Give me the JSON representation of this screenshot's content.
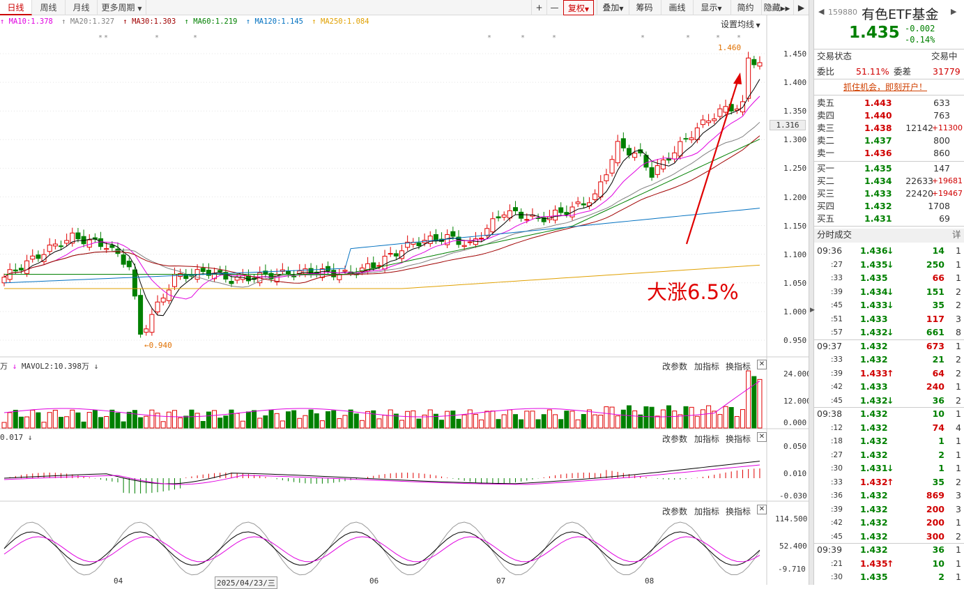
{
  "toolbar": {
    "tabs": [
      "日线",
      "周线",
      "月线",
      "更多周期"
    ],
    "plus": "+",
    "minus": "—",
    "buttons": [
      "复权",
      "叠加",
      "筹码",
      "画线",
      "显示",
      "简约",
      "隐藏"
    ]
  },
  "ma_legend": [
    {
      "label": "MA10:1.378",
      "color": "#e000e0"
    },
    {
      "label": "MA20:1.327",
      "color": "#808080"
    },
    {
      "label": "MA30:1.303",
      "color": "#a00000"
    },
    {
      "label": "MA60:1.219",
      "color": "#008000"
    },
    {
      "label": "MA120:1.145",
      "color": "#0070c0"
    },
    {
      "label": "MA250:1.084",
      "color": "#e0a000"
    }
  ],
  "set_ma_label": "设置均线",
  "price_axis": [
    "1.450",
    "1.400",
    "1.350",
    "1.316",
    "1.300",
    "1.250",
    "1.200",
    "1.150",
    "1.100",
    "1.050",
    "1.000",
    "0.950"
  ],
  "annotations": {
    "high": "1.460",
    "low": "←0.940",
    "callout": "大涨6.5%"
  },
  "vol_panel": {
    "legend": "MAVOL2:10.398万",
    "prefix": "万",
    "buttons": [
      "改参数",
      "加指标",
      "换指标"
    ],
    "axis": [
      "24.000",
      "12.000",
      "0.000"
    ]
  },
  "macd_panel": {
    "legend": "0.017",
    "buttons": [
      "改参数",
      "加指标",
      "换指标"
    ],
    "axis": [
      "0.050",
      "0.010",
      "-0.030"
    ]
  },
  "kdj_panel": {
    "buttons": [
      "改参数",
      "加指标",
      "换指标"
    ],
    "axis": [
      "114.500",
      "52.400",
      "-9.710"
    ]
  },
  "x_axis": [
    "04",
    "2025/04/23/三",
    "06",
    "07",
    "08"
  ],
  "colors": {
    "up": "#e00000",
    "down": "#008000"
  },
  "stock": {
    "code": "159880",
    "name": "有色ETF基金",
    "price": "1.435",
    "change": "-0.002",
    "pct": "-0.14%"
  },
  "status": {
    "label": "交易状态",
    "value": "交易中",
    "wb_label": "委比",
    "wb": "51.11%",
    "wc_label": "委差",
    "wc": "31779"
  },
  "promo": "抓住机会，即刻开户！",
  "asks": [
    {
      "label": "卖五",
      "price": "1.443",
      "vol": "633",
      "chg": ""
    },
    {
      "label": "卖四",
      "price": "1.440",
      "vol": "763",
      "chg": ""
    },
    {
      "label": "卖三",
      "price": "1.438",
      "vol": "12142",
      "chg": "+11300"
    },
    {
      "label": "卖二",
      "price": "1.437",
      "vol": "800",
      "chg": ""
    },
    {
      "label": "卖一",
      "price": "1.436",
      "vol": "860",
      "chg": ""
    }
  ],
  "bids": [
    {
      "label": "买一",
      "price": "1.435",
      "vol": "147",
      "chg": ""
    },
    {
      "label": "买二",
      "price": "1.434",
      "vol": "22633",
      "chg": "+19681"
    },
    {
      "label": "买三",
      "price": "1.433",
      "vol": "22420",
      "chg": "+19467"
    },
    {
      "label": "买四",
      "price": "1.432",
      "vol": "1708",
      "chg": ""
    },
    {
      "label": "买五",
      "price": "1.431",
      "vol": "69",
      "chg": ""
    }
  ],
  "ticks_header": {
    "label": "分时成交",
    "detail": "详"
  },
  "ticks": [
    {
      "t": "09:36",
      "p": "1.436",
      "v": "14",
      "n": "1",
      "d": "down"
    },
    {
      "t": ":27",
      "p": "1.435",
      "v": "250",
      "n": "1",
      "d": "down"
    },
    {
      "t": ":33",
      "p": "1.435",
      "v": "66",
      "n": "1",
      "d": ""
    },
    {
      "t": ":39",
      "p": "1.434",
      "v": "151",
      "n": "2",
      "d": "down"
    },
    {
      "t": ":45",
      "p": "1.433",
      "v": "35",
      "n": "2",
      "d": "down"
    },
    {
      "t": ":51",
      "p": "1.433",
      "v": "117",
      "n": "3",
      "d": ""
    },
    {
      "t": ":57",
      "p": "1.432",
      "v": "661",
      "n": "8",
      "d": "down"
    },
    {
      "t": "09:37",
      "p": "1.432",
      "v": "673",
      "n": "1",
      "d": ""
    },
    {
      "t": ":33",
      "p": "1.432",
      "v": "21",
      "n": "2",
      "d": ""
    },
    {
      "t": ":39",
      "p": "1.433",
      "v": "64",
      "n": "2",
      "d": "up"
    },
    {
      "t": ":42",
      "p": "1.433",
      "v": "240",
      "n": "1",
      "d": ""
    },
    {
      "t": ":45",
      "p": "1.432",
      "v": "36",
      "n": "2",
      "d": "down"
    },
    {
      "t": "09:38",
      "p": "1.432",
      "v": "10",
      "n": "1",
      "d": ""
    },
    {
      "t": ":12",
      "p": "1.432",
      "v": "74",
      "n": "4",
      "d": ""
    },
    {
      "t": ":18",
      "p": "1.432",
      "v": "1",
      "n": "1",
      "d": ""
    },
    {
      "t": ":27",
      "p": "1.432",
      "v": "2",
      "n": "1",
      "d": ""
    },
    {
      "t": ":30",
      "p": "1.431",
      "v": "1",
      "n": "1",
      "d": "down"
    },
    {
      "t": ":33",
      "p": "1.432",
      "v": "35",
      "n": "2",
      "d": "up"
    },
    {
      "t": ":36",
      "p": "1.432",
      "v": "869",
      "n": "3",
      "d": ""
    },
    {
      "t": ":39",
      "p": "1.432",
      "v": "200",
      "n": "3",
      "d": ""
    },
    {
      "t": ":42",
      "p": "1.432",
      "v": "200",
      "n": "1",
      "d": ""
    },
    {
      "t": ":45",
      "p": "1.432",
      "v": "300",
      "n": "2",
      "d": ""
    },
    {
      "t": "09:39",
      "p": "1.432",
      "v": "36",
      "n": "1",
      "d": ""
    },
    {
      "t": ":21",
      "p": "1.435",
      "v": "10",
      "n": "1",
      "d": "up"
    },
    {
      "t": ":30",
      "p": "1.435",
      "v": "2",
      "n": "1",
      "d": ""
    }
  ]
}
